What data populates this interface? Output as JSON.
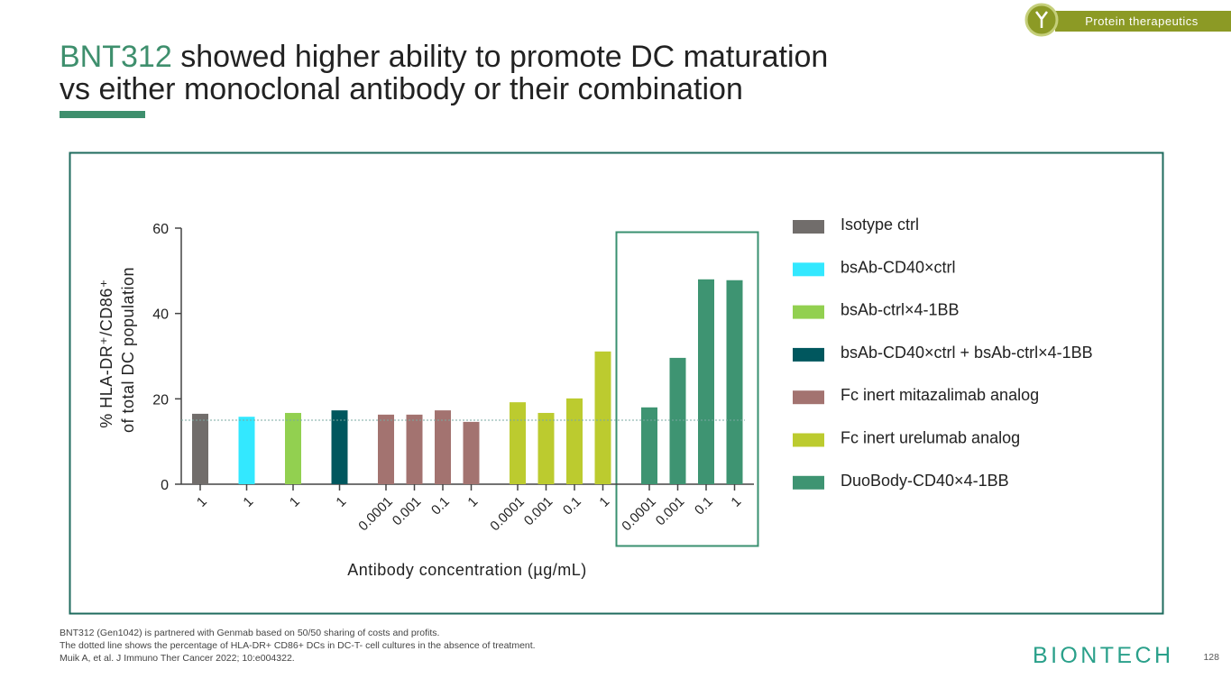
{
  "page": {
    "tag": "Protein therapeutics",
    "title_highlight": "BNT312",
    "title_lines": [
      "showed higher ability to promote DC maturation",
      "vs either monoclonal antibody or their combination"
    ],
    "footnotes": [
      "BNT312 (Gen1042) is partnered with Genmab based on 50/50 sharing of costs and profits.",
      "The dotted line shows the percentage of HLA-DR+ CD86+ DCs in DC-T- cell cultures in the absence of treatment.",
      "Muik A, et al. J Immuno Ther Cancer 2022; 10:e004322."
    ],
    "logo": "BIONTECH",
    "page_number": "128"
  },
  "chart_data": {
    "type": "bar",
    "y_label": [
      "% HLA-DR⁺/CD86⁺",
      "of total DC population"
    ],
    "x_label": "Antibody concentration (µg/mL)",
    "categories": [
      "1",
      "1",
      "1",
      "1",
      "0.0001",
      "0.001",
      "0.1",
      "1",
      "0.0001",
      "0.001",
      "0.1",
      "1",
      "0.0001",
      "0.001",
      "0.1",
      "1"
    ],
    "series": [
      {
        "name": "Isotype ctrl",
        "color": "#716d6b",
        "values": [
          16.5,
          null,
          null,
          null,
          null,
          null,
          null,
          null,
          null,
          null,
          null,
          null,
          null,
          null,
          null,
          null
        ]
      },
      {
        "name": "bsAb-CD40×ctrl",
        "color": "#33e8ff",
        "values": [
          null,
          15.8,
          null,
          null,
          null,
          null,
          null,
          null,
          null,
          null,
          null,
          null,
          null,
          null,
          null,
          null
        ]
      },
      {
        "name": "bsAb-ctrl×4-1BB",
        "color": "#92d050",
        "values": [
          null,
          null,
          16.7,
          null,
          null,
          null,
          null,
          null,
          null,
          null,
          null,
          null,
          null,
          null,
          null,
          null
        ]
      },
      {
        "name": "bsAb-CD40×ctrl + bsAb-ctrl×4-1BB",
        "color": "#00575e",
        "values": [
          null,
          null,
          null,
          17.3,
          null,
          null,
          null,
          null,
          null,
          null,
          null,
          null,
          null,
          null,
          null,
          null
        ]
      },
      {
        "name": "Fc inert mitazalimab analog",
        "color": "#a37370",
        "values": [
          null,
          null,
          null,
          null,
          16.3,
          16.3,
          17.3,
          14.6,
          null,
          null,
          null,
          null,
          null,
          null,
          null,
          null
        ]
      },
      {
        "name": "Fc inert urelumab analog",
        "color": "#bccb2f",
        "values": [
          null,
          null,
          null,
          null,
          null,
          null,
          null,
          null,
          19.2,
          16.7,
          20.1,
          31.1,
          null,
          null,
          null,
          null
        ]
      },
      {
        "name": "DuoBody-CD40×4-1BB",
        "color": "#3e9472",
        "values": [
          null,
          null,
          null,
          null,
          null,
          null,
          null,
          null,
          null,
          null,
          null,
          null,
          18.0,
          29.6,
          48.0,
          47.8
        ]
      }
    ],
    "reference_line": 15,
    "ylim": [
      0,
      60
    ],
    "yticks": [
      0,
      20,
      40,
      60
    ]
  }
}
